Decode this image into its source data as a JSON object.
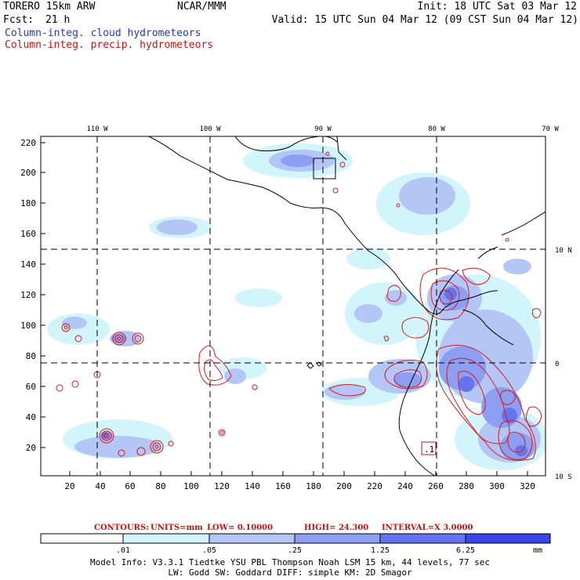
{
  "header": {
    "model": "TORERO  15km ARW",
    "org": "NCAR/MMM",
    "init": "Init: 18 UTC Sat 03 Mar 12",
    "fcst_label": "Fcst:",
    "fcst_hours": "21 h",
    "valid": "Valid: 15 UTC Sun 04 Mar 12 (09 CST Sun 04 Mar 12)",
    "field_cloud": "Column-integ. cloud hydrometeors",
    "field_precip": "Column-integ. precip. hydrometeors"
  },
  "colors": {
    "cloud_text": "#1f35d6",
    "precip_text": "#d01010",
    "contour": "#e01818",
    "shade_levels": [
      "#ffffff",
      "#d2f4fb",
      "#b4c6f6",
      "#8c9ff2",
      "#6673ee",
      "#3a45e8",
      "#1a22e0"
    ]
  },
  "map": {
    "top_lon_labels": [
      "110 W",
      "100 W",
      "90 W",
      "80 W",
      "70 W"
    ],
    "right_lat_labels": [
      "10 N",
      "0",
      "10 S"
    ],
    "y_ticks": [
      "220",
      "200",
      "180",
      "160",
      "140",
      "120",
      "100",
      "80",
      "60",
      "40",
      "20"
    ],
    "x_ticks": [
      "20",
      "40",
      "60",
      "80",
      "100",
      "120",
      "140",
      "160",
      "180",
      "200",
      "220",
      "240",
      "260",
      "280",
      "300",
      "320"
    ],
    "annotation_box": ".1"
  },
  "contour_info": {
    "label": "CONTOURS:",
    "units": "UNITS=mm",
    "low": "LOW= 0.10000",
    "high": "HIGH=  24.300",
    "interval": "INTERVAL=X  3.0000"
  },
  "colorbar": {
    "labels": [
      ".01",
      ".05",
      ".25",
      "1.25",
      "6.25"
    ],
    "unit": "mm"
  },
  "footer": {
    "line1": "Model Info: V3.3.1   Tiedtke YSU PBL  Thompson    Noah LSM  15 km,   44 levels,   77 sec",
    "line2": "LW: Godd SW: Goddard DIFF: simple KM: 2D Smagor"
  }
}
